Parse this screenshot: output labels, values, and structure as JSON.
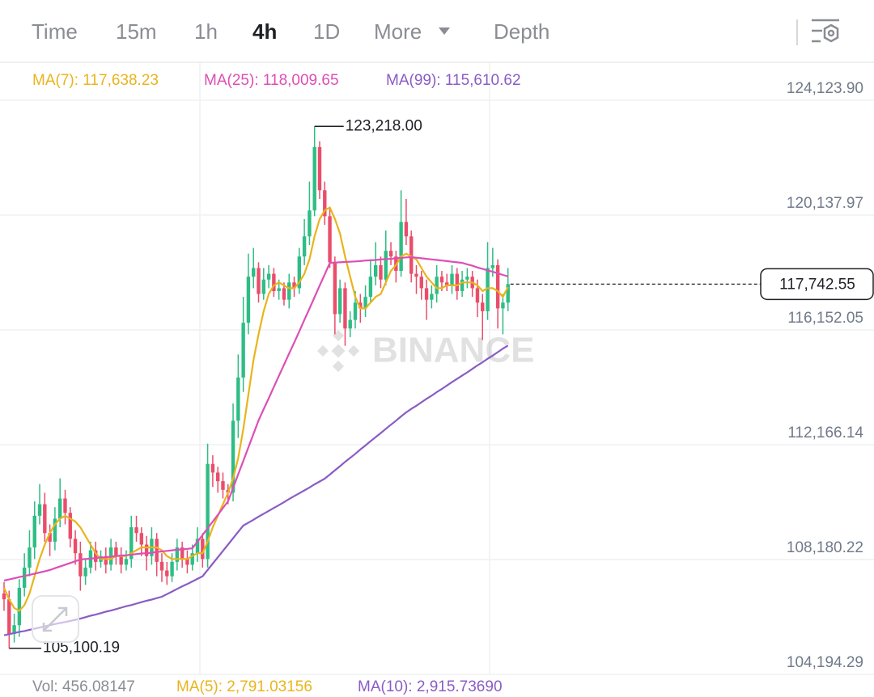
{
  "toolbar": {
    "tabs": [
      "Time",
      "15m",
      "1h",
      "4h",
      "1D",
      "More",
      "Depth"
    ],
    "active": 3
  },
  "chart_data": {
    "type": "candlestick",
    "watermark": "BINANCE",
    "ylim": [
      104194.29,
      125359.4
    ],
    "yticks": [
      {
        "value": 124123.9,
        "label": "124,123.90"
      },
      {
        "value": 120137.97,
        "label": "120,137.97"
      },
      {
        "value": 116152.05,
        "label": "116,152.05"
      },
      {
        "value": 112166.14,
        "label": "112,166.14"
      },
      {
        "value": 108180.22,
        "label": "108,180.22"
      },
      {
        "value": 104194.29,
        "label": "104,194.29"
      }
    ],
    "grid": true,
    "candles": {
      "up_color": "#2ebd85",
      "down_color": "#ea4d6a",
      "open": [
        107000,
        106800,
        105600,
        105900,
        107200,
        107900,
        108600,
        109700,
        110100,
        109100,
        108800,
        109600,
        110300,
        109800,
        108900,
        108400,
        107600,
        107900,
        108500,
        108100,
        108300,
        108000,
        108600,
        108300,
        108000,
        108200,
        109300,
        109100,
        108700,
        108300,
        108900,
        108100,
        107800,
        107600,
        108100,
        108600,
        108200,
        108000,
        108400,
        108900,
        108200,
        111500,
        111200,
        110900,
        110600,
        110500,
        113000,
        114500,
        116400,
        118000,
        118300,
        117400,
        117900,
        118100,
        117500,
        117600,
        117200,
        117800,
        117600,
        118700,
        119400,
        120300,
        122500,
        121000,
        120100,
        118500,
        116700,
        117600,
        116200,
        116500,
        117100,
        116900,
        117300,
        118000,
        118400,
        117900,
        118900,
        118700,
        118200,
        119900,
        119400,
        118100,
        118000,
        117600,
        117200,
        117400,
        118000,
        117800,
        117700,
        118100,
        117500,
        117900,
        118000,
        117600,
        117100,
        116800,
        118300,
        118400,
        116900,
        117100
      ],
      "high": [
        107400,
        107100,
        106300,
        107500,
        108400,
        109200,
        110200,
        110800,
        110500,
        109400,
        110000,
        111000,
        110600,
        110000,
        109200,
        108800,
        108200,
        108800,
        108800,
        108500,
        108600,
        108900,
        108800,
        108600,
        108500,
        109700,
        109700,
        109300,
        109000,
        109300,
        109100,
        108400,
        108100,
        108400,
        108900,
        108800,
        108500,
        108700,
        109300,
        109100,
        112200,
        111800,
        111400,
        111200,
        110800,
        113600,
        115300,
        117300,
        118800,
        119000,
        118500,
        118300,
        118400,
        118300,
        117900,
        117800,
        118100,
        118000,
        119000,
        120000,
        121300,
        123218,
        122700,
        121300,
        120400,
        118700,
        117900,
        117800,
        116800,
        117500,
        117400,
        117700,
        118600,
        119200,
        118700,
        119600,
        119200,
        118900,
        121000,
        120700,
        119600,
        118400,
        118200,
        117900,
        117700,
        118400,
        118200,
        118100,
        118400,
        118300,
        118200,
        118300,
        118200,
        117900,
        117400,
        119200,
        119000,
        118600,
        117400,
        118300
      ],
      "low": [
        106400,
        105100.19,
        105300,
        105500,
        106900,
        107600,
        108200,
        109400,
        108800,
        108300,
        108500,
        109300,
        109400,
        108600,
        108000,
        107100,
        107300,
        107700,
        107800,
        107900,
        107700,
        107800,
        108000,
        107700,
        107800,
        107900,
        108800,
        108300,
        107800,
        108000,
        107600,
        107400,
        107300,
        107400,
        107800,
        107900,
        107700,
        107800,
        108100,
        107900,
        107900,
        110700,
        110500,
        110300,
        110100,
        110200,
        112400,
        114000,
        116000,
        117600,
        117100,
        117200,
        117600,
        117300,
        117200,
        117000,
        116900,
        117300,
        117400,
        118400,
        119100,
        120100,
        120700,
        119800,
        118300,
        116000,
        116400,
        115600,
        115900,
        116200,
        116400,
        116600,
        117100,
        117700,
        117600,
        117700,
        118400,
        117800,
        118000,
        119100,
        117800,
        117400,
        117200,
        116500,
        116900,
        117100,
        117500,
        117500,
        117400,
        117200,
        117300,
        117600,
        117300,
        116600,
        115800,
        116500,
        118000,
        116200,
        116000,
        116800
      ],
      "close": [
        106800,
        105600,
        105900,
        107200,
        107900,
        108600,
        109700,
        110100,
        109100,
        108800,
        109600,
        110300,
        109800,
        108900,
        108400,
        107600,
        107900,
        108500,
        108100,
        108300,
        108000,
        108600,
        108300,
        108000,
        108200,
        109300,
        109100,
        108700,
        108300,
        108900,
        108100,
        107800,
        107600,
        108100,
        108600,
        108200,
        108000,
        108400,
        108900,
        108200,
        111500,
        111200,
        110900,
        110600,
        110500,
        113000,
        114500,
        116400,
        118000,
        118300,
        117400,
        117900,
        118100,
        117500,
        117600,
        117200,
        117800,
        117600,
        118700,
        119400,
        120300,
        122500,
        121000,
        120100,
        118500,
        116700,
        117600,
        116200,
        116500,
        117100,
        116900,
        117300,
        118000,
        118400,
        117900,
        118900,
        118700,
        118200,
        119900,
        119400,
        118100,
        118000,
        117600,
        117200,
        117400,
        118000,
        117800,
        117700,
        118100,
        117500,
        117900,
        118000,
        117600,
        117100,
        116800,
        118300,
        118400,
        116900,
        117100,
        117742.55
      ]
    },
    "ma": [
      {
        "label": "MA(7): 117,638.23",
        "color": "#e9b41c",
        "values": [
          107200,
          106800,
          106500,
          106400,
          106600,
          107000,
          107600,
          108200,
          108700,
          109100,
          109400,
          109600,
          109700,
          109600,
          109500,
          109300,
          109000,
          108700,
          108400,
          108200,
          108200,
          108200,
          108300,
          108300,
          108300,
          108400,
          108500,
          108600,
          108600,
          108600,
          108600,
          108500,
          108300,
          108200,
          108200,
          108200,
          108200,
          108300,
          108400,
          108400,
          108800,
          109300,
          109700,
          110100,
          110500,
          111000,
          111700,
          112700,
          113900,
          115100,
          116000,
          116800,
          117400,
          117700,
          117800,
          117700,
          117600,
          117600,
          117800,
          118100,
          118600,
          119400,
          120000,
          120300,
          120400,
          120000,
          119500,
          118700,
          118000,
          117300,
          116900,
          116900,
          117100,
          117300,
          117400,
          117800,
          118200,
          118400,
          118700,
          118800,
          118700,
          118600,
          118300,
          118000,
          117800,
          117600,
          117600,
          117700,
          117700,
          117700,
          117800,
          117800,
          117800,
          117700,
          117500,
          117600,
          117600,
          117500,
          117300,
          117638.23
        ]
      },
      {
        "label": "MA(25): 118,009.65",
        "color": "#dc4fb5",
        "values": [
          107450,
          107490,
          107530,
          107570,
          107610,
          107650,
          107690,
          107730,
          107770,
          107815,
          107880,
          107940,
          108000,
          108060,
          108120,
          108180,
          108200,
          108210,
          108230,
          108250,
          108260,
          108280,
          108300,
          108320,
          108330,
          108350,
          108370,
          108390,
          108400,
          108420,
          108440,
          108460,
          108480,
          108500,
          108520,
          108530,
          108550,
          108570,
          108800,
          109030,
          109270,
          109500,
          109730,
          109970,
          110200,
          110670,
          111140,
          111600,
          112070,
          112540,
          113010,
          113400,
          113780,
          114170,
          114560,
          114940,
          115330,
          115710,
          116100,
          116500,
          116890,
          117290,
          117690,
          118080,
          118480,
          118490,
          118500,
          118510,
          118520,
          118530,
          118540,
          118560,
          118570,
          118580,
          118600,
          118610,
          118620,
          118640,
          118650,
          118670,
          118680,
          118660,
          118640,
          118620,
          118600,
          118580,
          118560,
          118540,
          118520,
          118500,
          118480,
          118430,
          118380,
          118320,
          118270,
          118220,
          118170,
          118120,
          118060,
          118009.65
        ]
      },
      {
        "label": "MA(99): 115,610.62",
        "color": "#8a5cc5",
        "values": [
          105550,
          105590,
          105630,
          105670,
          105700,
          105740,
          105780,
          105820,
          105860,
          105900,
          105940,
          105980,
          106010,
          106050,
          106090,
          106130,
          106180,
          106230,
          106270,
          106320,
          106370,
          106410,
          106460,
          106510,
          106560,
          106600,
          106650,
          106700,
          106750,
          106790,
          106840,
          106890,
          106980,
          107070,
          107160,
          107250,
          107330,
          107420,
          107510,
          107600,
          107820,
          108040,
          108260,
          108480,
          108700,
          108920,
          109140,
          109360,
          109460,
          109560,
          109670,
          109770,
          109870,
          109970,
          110070,
          110170,
          110280,
          110380,
          110480,
          110580,
          110680,
          110790,
          110890,
          110990,
          111130,
          111280,
          111420,
          111570,
          111710,
          111850,
          112000,
          112140,
          112290,
          112430,
          112570,
          112720,
          112860,
          113000,
          113150,
          113290,
          113410,
          113520,
          113640,
          113760,
          113870,
          113990,
          114100,
          114220,
          114340,
          114450,
          114570,
          114680,
          114800,
          114920,
          115030,
          115150,
          115260,
          115380,
          115500,
          115610.62
        ]
      }
    ],
    "high_annotation": {
      "value": 123218,
      "label": "123,218.00"
    },
    "low_annotation": {
      "value": 105100.19,
      "label": "105,100.19"
    },
    "last_price": {
      "value": 117742.55,
      "label": "117,742.55"
    },
    "volume_legend": [
      {
        "text": "Vol: 456.08147",
        "color": "#8a8d93"
      },
      {
        "text": "MA(5): 2,791.03156",
        "color": "#e9b41c"
      },
      {
        "text": "MA(10): 2,915.73690",
        "color": "#8a5cc5"
      }
    ]
  }
}
